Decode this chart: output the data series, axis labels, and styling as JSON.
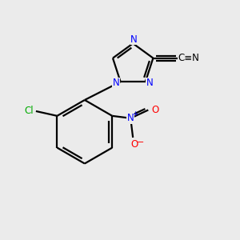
{
  "background_color": "#ebebeb",
  "bond_color": "#000000",
  "atom_colors": {
    "N": "#0000ff",
    "Cl": "#00aa00",
    "O": "#ff0000",
    "C": "#000000"
  },
  "figsize": [
    3.0,
    3.0
  ],
  "dpi": 100
}
